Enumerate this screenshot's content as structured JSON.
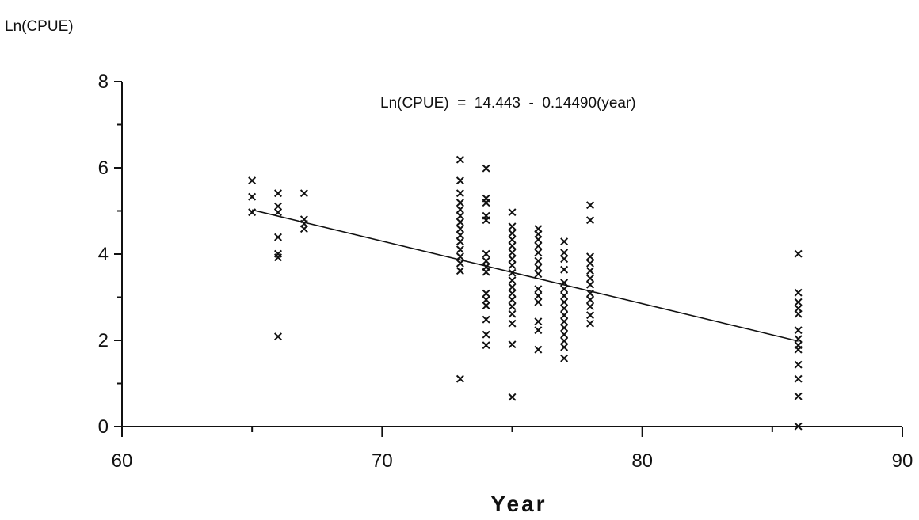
{
  "chart_data": {
    "type": "scatter",
    "ylabel": "Ln(CPUE)",
    "xlabel": "Year",
    "xlim": [
      60,
      90
    ],
    "ylim": [
      0,
      8
    ],
    "x_ticks": [
      60,
      70,
      80,
      90
    ],
    "y_ticks": [
      0,
      2,
      4,
      6,
      8
    ],
    "x_minor_step": 5,
    "y_minor_step": 1,
    "grid": false,
    "marker": "x",
    "annotation": "Ln(CPUE)  =  14.443  -  0.14490(year)",
    "regression": {
      "intercept": 14.443,
      "slope": -0.1449,
      "x_range": [
        65,
        86
      ]
    },
    "series": [
      {
        "points": [
          [
            65,
            5.72
          ],
          [
            65,
            5.34
          ],
          [
            65,
            4.98
          ],
          [
            66,
            5.42
          ],
          [
            66,
            5.12
          ],
          [
            66,
            4.98
          ],
          [
            66,
            4.4
          ],
          [
            66,
            4.02
          ],
          [
            66,
            3.94
          ],
          [
            66,
            2.1
          ],
          [
            67,
            5.42
          ],
          [
            67,
            4.82
          ],
          [
            67,
            4.72
          ],
          [
            67,
            4.6
          ],
          [
            73,
            6.2
          ],
          [
            73,
            5.72
          ],
          [
            73,
            5.42
          ],
          [
            73,
            5.2
          ],
          [
            73,
            5.05
          ],
          [
            73,
            4.9
          ],
          [
            73,
            4.75
          ],
          [
            73,
            4.6
          ],
          [
            73,
            4.45
          ],
          [
            73,
            4.3
          ],
          [
            73,
            4.12
          ],
          [
            73,
            3.95
          ],
          [
            73,
            3.8
          ],
          [
            73,
            3.62
          ],
          [
            73,
            1.12
          ],
          [
            74,
            6.0
          ],
          [
            74,
            5.3
          ],
          [
            74,
            5.2
          ],
          [
            74,
            4.9
          ],
          [
            74,
            4.8
          ],
          [
            74,
            4.02
          ],
          [
            74,
            3.85
          ],
          [
            74,
            3.72
          ],
          [
            74,
            3.6
          ],
          [
            74,
            3.1
          ],
          [
            74,
            2.95
          ],
          [
            74,
            2.82
          ],
          [
            74,
            2.5
          ],
          [
            74,
            2.15
          ],
          [
            74,
            1.9
          ],
          [
            75,
            4.98
          ],
          [
            75,
            4.65
          ],
          [
            75,
            4.5
          ],
          [
            75,
            4.35
          ],
          [
            75,
            4.2
          ],
          [
            75,
            4.05
          ],
          [
            75,
            3.9
          ],
          [
            75,
            3.75
          ],
          [
            75,
            3.58
          ],
          [
            75,
            3.4
          ],
          [
            75,
            3.25
          ],
          [
            75,
            3.1
          ],
          [
            75,
            2.95
          ],
          [
            75,
            2.8
          ],
          [
            75,
            2.62
          ],
          [
            75,
            2.4
          ],
          [
            75,
            1.92
          ],
          [
            75,
            0.7
          ],
          [
            76,
            4.6
          ],
          [
            76,
            4.48
          ],
          [
            76,
            4.35
          ],
          [
            76,
            4.2
          ],
          [
            76,
            4.05
          ],
          [
            76,
            3.85
          ],
          [
            76,
            3.7
          ],
          [
            76,
            3.55
          ],
          [
            76,
            3.2
          ],
          [
            76,
            3.05
          ],
          [
            76,
            2.9
          ],
          [
            76,
            2.45
          ],
          [
            76,
            2.25
          ],
          [
            76,
            1.8
          ],
          [
            77,
            4.3
          ],
          [
            77,
            4.05
          ],
          [
            77,
            3.9
          ],
          [
            77,
            3.65
          ],
          [
            77,
            3.35
          ],
          [
            77,
            3.2
          ],
          [
            77,
            3.05
          ],
          [
            77,
            2.9
          ],
          [
            77,
            2.75
          ],
          [
            77,
            2.6
          ],
          [
            77,
            2.45
          ],
          [
            77,
            2.3
          ],
          [
            77,
            2.15
          ],
          [
            77,
            2.0
          ],
          [
            77,
            1.85
          ],
          [
            77,
            1.6
          ],
          [
            78,
            5.15
          ],
          [
            78,
            4.8
          ],
          [
            78,
            3.95
          ],
          [
            78,
            3.8
          ],
          [
            78,
            3.62
          ],
          [
            78,
            3.45
          ],
          [
            78,
            3.3
          ],
          [
            78,
            3.1
          ],
          [
            78,
            2.95
          ],
          [
            78,
            2.8
          ],
          [
            78,
            2.6
          ],
          [
            78,
            2.4
          ],
          [
            86,
            4.02
          ],
          [
            86,
            3.12
          ],
          [
            86,
            2.9
          ],
          [
            86,
            2.75
          ],
          [
            86,
            2.62
          ],
          [
            86,
            2.25
          ],
          [
            86,
            2.05
          ],
          [
            86,
            1.9
          ],
          [
            86,
            1.8
          ],
          [
            86,
            1.45
          ],
          [
            86,
            1.12
          ],
          [
            86,
            0.72
          ],
          [
            86,
            0.02
          ]
        ]
      }
    ]
  }
}
